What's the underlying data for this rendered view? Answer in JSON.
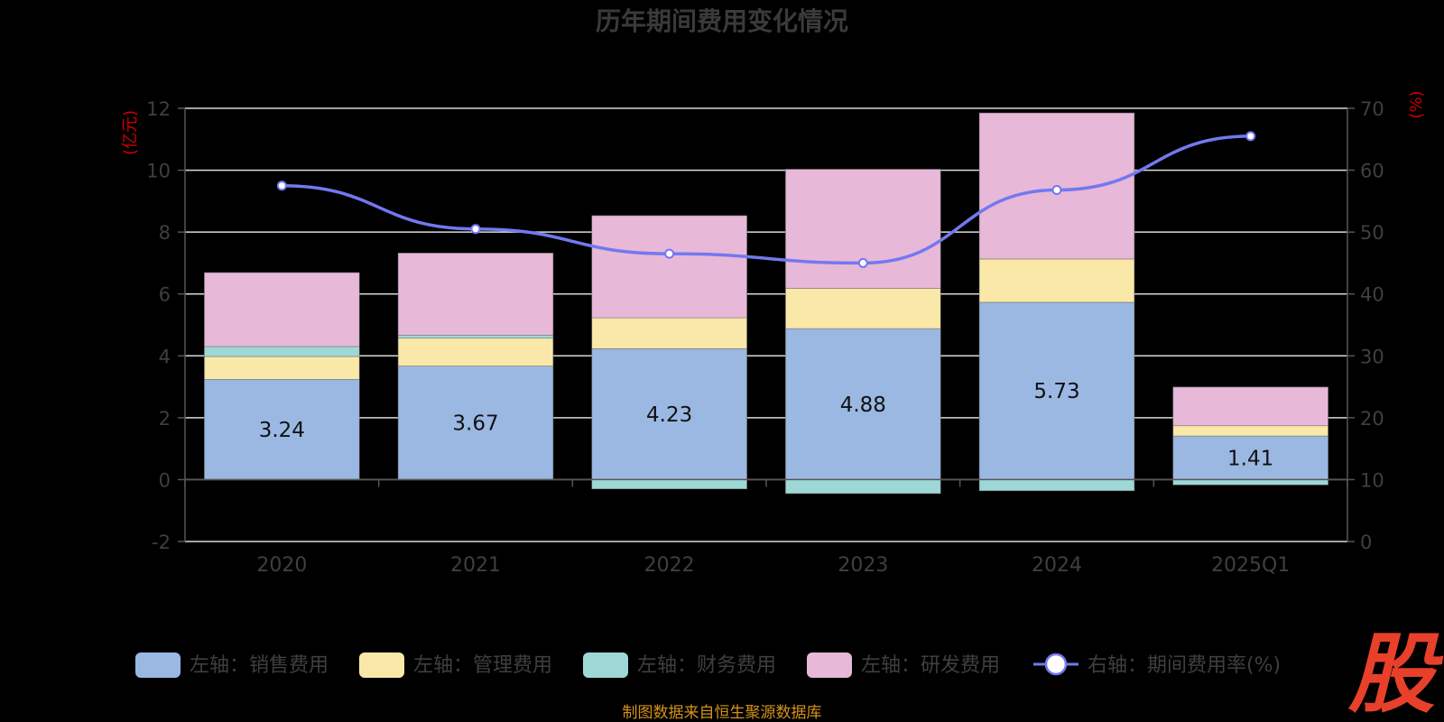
{
  "chart_data": {
    "type": "bar",
    "title": "历年期间费用变化情况",
    "categories": [
      "2020",
      "2021",
      "2022",
      "2023",
      "2024",
      "2025Q1"
    ],
    "left_axis": {
      "unit": "(亿元)",
      "range": [
        -2,
        12
      ],
      "ticks": [
        -2,
        0,
        2,
        4,
        6,
        8,
        10,
        12
      ]
    },
    "right_axis": {
      "unit": "(%)",
      "range": [
        0,
        70
      ],
      "ticks": [
        0,
        10,
        20,
        30,
        40,
        50,
        60,
        70
      ]
    },
    "series": [
      {
        "name": "左轴：销售费用",
        "type": "bar",
        "axis": "left",
        "color": "#9ab8e2",
        "values": [
          3.24,
          3.67,
          4.23,
          4.88,
          5.73,
          1.41
        ],
        "data_labels": [
          "3.24",
          "3.67",
          "4.23",
          "4.88",
          "5.73",
          "1.41"
        ]
      },
      {
        "name": "左轴：管理费用",
        "type": "bar",
        "axis": "left",
        "color": "#f9e8a8",
        "values": [
          0.74,
          0.9,
          1.0,
          1.3,
          1.4,
          0.33
        ]
      },
      {
        "name": "左轴：财务费用",
        "type": "bar",
        "axis": "left",
        "color": "#9ed8d6",
        "values": [
          0.32,
          0.1,
          -0.3,
          -0.45,
          -0.36,
          -0.17
        ]
      },
      {
        "name": "左轴：研发费用",
        "type": "bar",
        "axis": "left",
        "color": "#e8b8d8",
        "values": [
          2.39,
          2.65,
          3.3,
          3.85,
          4.72,
          1.25
        ]
      },
      {
        "name": "右轴：期间费用率(%)",
        "type": "line",
        "axis": "right",
        "color": "#7378f0",
        "values": [
          57.5,
          50.5,
          46.5,
          45.0,
          56.8,
          65.5
        ]
      }
    ],
    "grid": true,
    "legend_position": "bottom"
  },
  "source_note": "制图数据来自恒生聚源数据库",
  "watermark_text": "股"
}
